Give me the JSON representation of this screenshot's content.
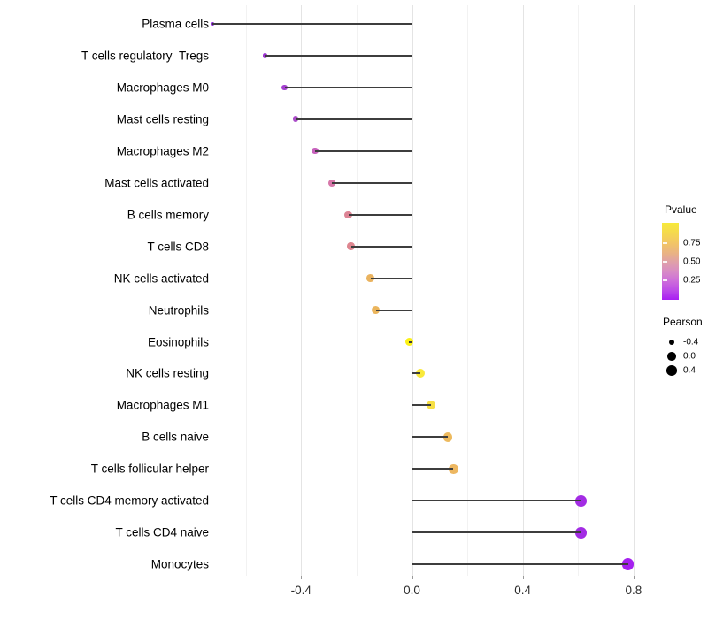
{
  "chart_data": {
    "type": "scatter",
    "subtype": "lollipop",
    "orientation": "horizontal",
    "title": "",
    "xlabel": "",
    "ylabel": "",
    "grid": "vertical-only",
    "xlim": [
      -0.8,
      0.87
    ],
    "x_tick_labels": [
      "-0.4",
      "0.0",
      "0.4",
      "0.8"
    ],
    "x_tick_values": [
      -0.4,
      0.0,
      0.4,
      0.8
    ],
    "x_minor_grid_values": [
      -0.6,
      -0.2,
      0.2,
      0.6
    ],
    "categories": [
      "Plasma cells",
      "T cells regulatory  Tregs",
      "Macrophages M0",
      "Mast cells resting",
      "Macrophages M2",
      "Mast cells activated",
      "B cells memory",
      "T cells CD8",
      "NK cells activated",
      "Neutrophils",
      "Eosinophils",
      "NK cells resting",
      "Macrophages M1",
      "B cells naive",
      "T cells follicular helper",
      "T cells CD4 memory activated",
      "T cells CD4 naive",
      "Monocytes"
    ],
    "points": [
      {
        "label": "Plasma cells",
        "pearson": -0.72,
        "pvalue": 0.02,
        "color": "#8c26d8"
      },
      {
        "label": "T cells regulatory  Tregs",
        "pearson": -0.53,
        "pvalue": 0.07,
        "color": "#9c33d2"
      },
      {
        "label": "Macrophages M0",
        "pearson": -0.46,
        "pvalue": 0.11,
        "color": "#a440cf"
      },
      {
        "label": "Mast cells resting",
        "pearson": -0.42,
        "pvalue": 0.16,
        "color": "#ab4cc9"
      },
      {
        "label": "Macrophages M2",
        "pearson": -0.35,
        "pvalue": 0.3,
        "color": "#c763bd"
      },
      {
        "label": "Mast cells activated",
        "pearson": -0.29,
        "pvalue": 0.43,
        "color": "#d778aa"
      },
      {
        "label": "B cells memory",
        "pearson": -0.23,
        "pvalue": 0.48,
        "color": "#dd8495"
      },
      {
        "label": "T cells CD8",
        "pearson": -0.22,
        "pvalue": 0.5,
        "color": "#de8690"
      },
      {
        "label": "NK cells activated",
        "pearson": -0.15,
        "pvalue": 0.7,
        "color": "#eab35f"
      },
      {
        "label": "Neutrophils",
        "pearson": -0.13,
        "pvalue": 0.71,
        "color": "#ebb55c"
      },
      {
        "label": "Eosinophils",
        "pearson": -0.01,
        "pvalue": 0.97,
        "color": "#fbf116"
      },
      {
        "label": "NK cells resting",
        "pearson": 0.03,
        "pvalue": 0.9,
        "color": "#f9e93b"
      },
      {
        "label": "Macrophages M1",
        "pearson": 0.07,
        "pvalue": 0.86,
        "color": "#f6df45"
      },
      {
        "label": "B cells naive",
        "pearson": 0.13,
        "pvalue": 0.74,
        "color": "#edba5e"
      },
      {
        "label": "T cells follicular helper",
        "pearson": 0.15,
        "pvalue": 0.73,
        "color": "#edb761"
      },
      {
        "label": "T cells CD4 memory activated",
        "pearson": 0.61,
        "pvalue": 0.03,
        "color": "#a32ce4"
      },
      {
        "label": "T cells CD4 naive",
        "pearson": 0.61,
        "pvalue": 0.03,
        "color": "#a32ce4"
      },
      {
        "label": "Monocytes",
        "pearson": 0.78,
        "pvalue": 0.01,
        "color": "#a521ef"
      }
    ],
    "legend_position": "right"
  },
  "legends": {
    "pvalue": {
      "title": "Pvalue",
      "tick_labels": [
        "0.75",
        "0.50",
        "0.25"
      ],
      "tick_values": [
        0.75,
        0.5,
        0.25
      ],
      "gradient_high_color": "#f7ea3a",
      "gradient_mid_color": "#e0a0a8",
      "gradient_low_color": "#a81ef2",
      "range": [
        0,
        1
      ]
    },
    "pearson": {
      "title": "Pearson",
      "items": [
        {
          "label": "-0.4",
          "value": -0.4
        },
        {
          "label": "0.0",
          "value": 0.0
        },
        {
          "label": "0.4",
          "value": 0.4
        }
      ]
    }
  },
  "colors": {
    "segment": "#3d3d3d",
    "grid_major": "#e4e4e4",
    "grid_minor": "#f2f2f2",
    "axis_text": "#2b2b2b"
  }
}
